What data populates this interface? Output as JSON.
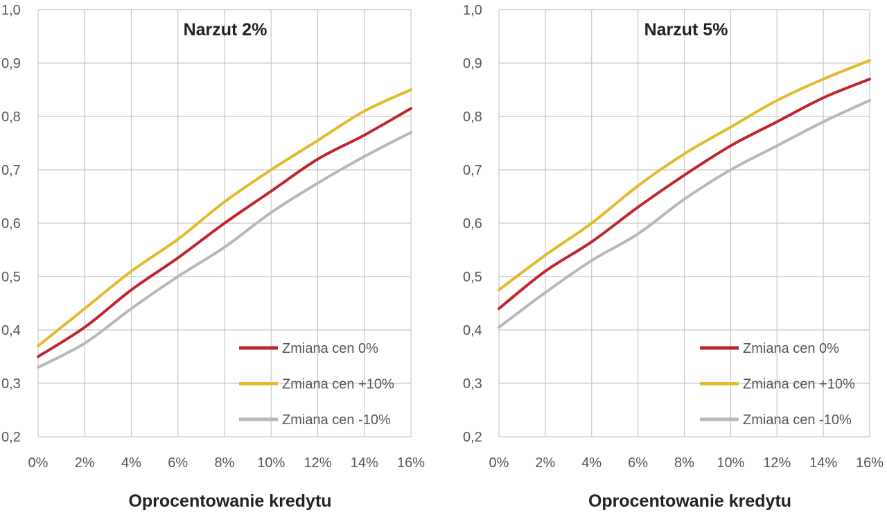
{
  "chart_data": [
    {
      "type": "line",
      "title": "Narzut 2%",
      "xlabel": "Oprocentowanie kredytu",
      "ylabel": "",
      "x": [
        0,
        2,
        4,
        6,
        8,
        10,
        12,
        14,
        16
      ],
      "x_tick_labels": [
        "0%",
        "2%",
        "4%",
        "6%",
        "8%",
        "10%",
        "12%",
        "14%",
        "16%"
      ],
      "y_tick_labels": [
        "0,2",
        "0,3",
        "0,4",
        "0,5",
        "0,6",
        "0,7",
        "0,8",
        "0,9",
        "1,0"
      ],
      "xlim": [
        0,
        16
      ],
      "ylim": [
        0.2,
        1.0
      ],
      "grid": true,
      "legend_placement": "bottom-right",
      "series": [
        {
          "name": "Zmiana cen   0%",
          "color": "#c0252b",
          "values": [
            0.35,
            0.405,
            0.475,
            0.535,
            0.6,
            0.66,
            0.72,
            0.765,
            0.815
          ]
        },
        {
          "name": "Zmiana cen +10%",
          "color": "#e3bb2a",
          "values": [
            0.37,
            0.44,
            0.51,
            0.57,
            0.64,
            0.7,
            0.755,
            0.81,
            0.85
          ]
        },
        {
          "name": "Zmiana cen -10%",
          "color": "#b8b8b8",
          "values": [
            0.33,
            0.375,
            0.44,
            0.5,
            0.555,
            0.62,
            0.675,
            0.725,
            0.77
          ]
        }
      ]
    },
    {
      "type": "line",
      "title": "Narzut 5%",
      "xlabel": "Oprocentowanie kredytu",
      "ylabel": "",
      "x": [
        0,
        2,
        4,
        6,
        8,
        10,
        12,
        14,
        16
      ],
      "x_tick_labels": [
        "0%",
        "2%",
        "4%",
        "6%",
        "8%",
        "10%",
        "12%",
        "14%",
        "16%"
      ],
      "y_tick_labels": [
        "0,2",
        "0,3",
        "0,4",
        "0,5",
        "0,6",
        "0,7",
        "0,8",
        "0,9",
        "1,0"
      ],
      "xlim": [
        0,
        16
      ],
      "ylim": [
        0.2,
        1.0
      ],
      "grid": true,
      "legend_placement": "bottom-right",
      "series": [
        {
          "name": "Zmiana cen 0%",
          "color": "#c0252b",
          "values": [
            0.44,
            0.51,
            0.565,
            0.63,
            0.69,
            0.745,
            0.79,
            0.835,
            0.87
          ]
        },
        {
          "name": "Zmiana cen +10%",
          "color": "#e3bb2a",
          "values": [
            0.475,
            0.54,
            0.6,
            0.67,
            0.73,
            0.78,
            0.83,
            0.87,
            0.905
          ]
        },
        {
          "name": "Zmiana cen -10%",
          "color": "#b8b8b8",
          "values": [
            0.405,
            0.47,
            0.53,
            0.58,
            0.645,
            0.7,
            0.745,
            0.79,
            0.83
          ]
        }
      ]
    }
  ]
}
